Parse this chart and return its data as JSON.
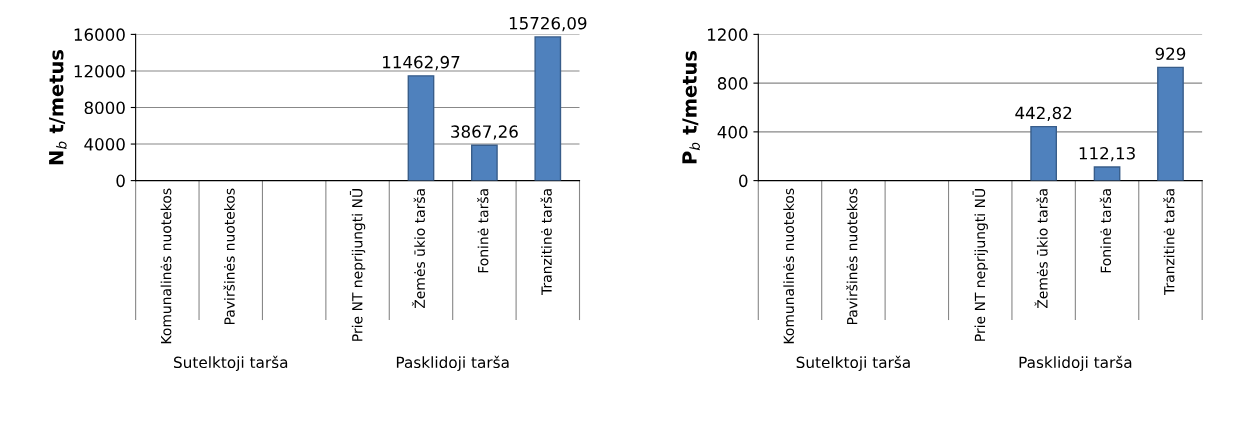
{
  "chart_data": [
    {
      "type": "bar",
      "ylabel": "N$_{b}$ t/metus",
      "categories": [
        "Komunalinės nuotekos",
        "Paviršinės nuotekos",
        null,
        "Prie NT neprijungti NŪ",
        "Žemės ūkio tarša",
        "Foninė tarša",
        "Tranzitinė tarša"
      ],
      "values": [
        null,
        null,
        null,
        null,
        11462.97,
        3867.26,
        15726.09
      ],
      "color": "#4f81bd",
      "value_labels": [
        null,
        null,
        null,
        null,
        "11462,97",
        "3867,26",
        "15726,09"
      ],
      "ylim": [
        0,
        16000
      ],
      "yticks": [
        0,
        4000,
        8000,
        12000,
        16000
      ],
      "grid": "y",
      "annotations": [
        "Sutelktoji tarša",
        "Pasklidoji tarša"
      ]
    },
    {
      "type": "bar",
      "ylabel": "P$_{b}$ t/metus",
      "categories": [
        "Komunalinės nuotekos",
        "Paviršinės nuotekos",
        null,
        "Prie NT neprijungti NŪ",
        "Žemės ūkio tarša",
        "Foninė tarša",
        "Tranzitinė tarša"
      ],
      "values": [
        null,
        null,
        null,
        null,
        442.82,
        112.13,
        929
      ],
      "color": "#4f81bd",
      "value_labels": [
        null,
        null,
        null,
        null,
        "442,82",
        "112,13",
        "929"
      ],
      "ylim": [
        0,
        1200
      ],
      "yticks": [
        0,
        400,
        800,
        1200
      ],
      "grid": "y",
      "annotations": [
        "Sutelktoji tarša",
        "Pasklidoji tarša"
      ]
    }
  ]
}
